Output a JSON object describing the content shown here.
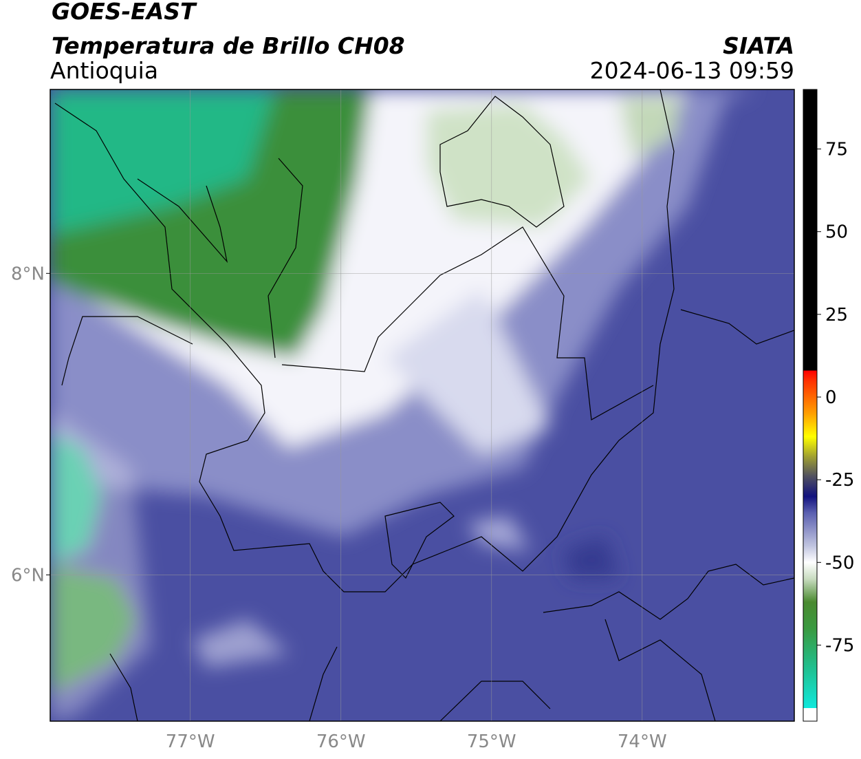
{
  "header": {
    "title": "GOES-EAST",
    "subtitle": "Temperatura de Brillo CH08",
    "region": "Antioquia",
    "source": "SIATA",
    "timestamp": "2024-06-13 09:59"
  },
  "chart_data": {
    "type": "map",
    "xlim": [
      -77.93,
      -72.99
    ],
    "ylim": [
      5.03,
      9.22
    ],
    "xticks": [
      {
        "value": -77,
        "label": "77°W"
      },
      {
        "value": -76,
        "label": "76°W"
      },
      {
        "value": -75,
        "label": "75°W"
      },
      {
        "value": -74,
        "label": "74°W"
      }
    ],
    "yticks": [
      {
        "value": 6,
        "label": "6°N"
      },
      {
        "value": 8,
        "label": "8°N"
      }
    ],
    "grid": true,
    "colorbar": {
      "range": [
        -98,
        93
      ],
      "ticks": [
        75,
        50,
        25,
        0,
        -25,
        -50,
        -75
      ],
      "stops": [
        {
          "value": -98,
          "color": "#ffffff"
        },
        {
          "value": -94,
          "color": "#ffffff"
        },
        {
          "value": -94,
          "color": "#10e8dc"
        },
        {
          "value": -82,
          "color": "#20c090"
        },
        {
          "value": -70,
          "color": "#3a9a40"
        },
        {
          "value": -62,
          "color": "#4a8a30"
        },
        {
          "value": -55,
          "color": "#c8dcc0"
        },
        {
          "value": -50,
          "color": "#ffffff"
        },
        {
          "value": -45,
          "color": "#c0c4e0"
        },
        {
          "value": -35,
          "color": "#5a5fb0"
        },
        {
          "value": -30,
          "color": "#12127e"
        },
        {
          "value": -24,
          "color": "#505060"
        },
        {
          "value": -18,
          "color": "#a0a030"
        },
        {
          "value": -12,
          "color": "#ffff00"
        },
        {
          "value": -5,
          "color": "#ffa000"
        },
        {
          "value": 5,
          "color": "#ff3000"
        },
        {
          "value": 8,
          "color": "#ff0000"
        },
        {
          "value": 8,
          "color": "#000000"
        },
        {
          "value": 93,
          "color": "#000000"
        }
      ]
    }
  }
}
